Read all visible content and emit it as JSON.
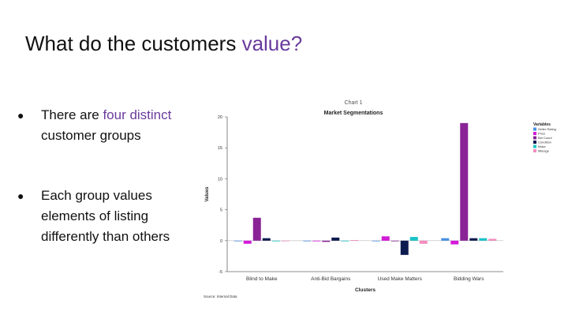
{
  "slide": {
    "title_main": "What do the customers ",
    "title_highlight": "value?",
    "bullet1_pre": "There are ",
    "bullet1_highlight": "four distinct",
    "bullet1_post": " customer groups",
    "bullet2": "Each group values elements of listing differently than others",
    "bullet_glyph": "●",
    "accent_color": "#6a3b9c"
  },
  "chart_data": {
    "type": "bar",
    "supertitle": "Chart 1",
    "title": "Market Segmentations",
    "xlabel": "Clusters",
    "ylabel": "Values",
    "source": "Source: Internal Data",
    "legend_title": "Variables",
    "legend_position": "top-right",
    "ylim": [
      -5,
      20
    ],
    "yticks": [
      -5,
      0,
      5,
      10,
      15,
      20
    ],
    "grid": false,
    "categories": [
      "Blind to Make",
      "Anti-Bid Bargains",
      "Used Make Matters",
      "Bidding Wars"
    ],
    "series": [
      {
        "name": "Seller Rating",
        "color": "#4a90e2",
        "values": [
          0.0,
          0.0,
          0.0,
          0.4
        ]
      },
      {
        "name": "Price",
        "color": "#d21ad8",
        "values": [
          -0.5,
          -0.1,
          0.7,
          -0.6
        ]
      },
      {
        "name": "Bid Count",
        "color": "#8a2496",
        "values": [
          3.7,
          -0.2,
          -0.1,
          19.0
        ]
      },
      {
        "name": "Condition",
        "color": "#0d1a4f",
        "values": [
          0.4,
          0.5,
          -2.3,
          0.4
        ]
      },
      {
        "name": "Make",
        "color": "#19c3c9",
        "values": [
          0.0,
          0.0,
          0.6,
          0.4
        ]
      },
      {
        "name": "Mileage",
        "color": "#f28cc0",
        "values": [
          0.0,
          0.1,
          -0.5,
          0.3
        ]
      }
    ]
  }
}
